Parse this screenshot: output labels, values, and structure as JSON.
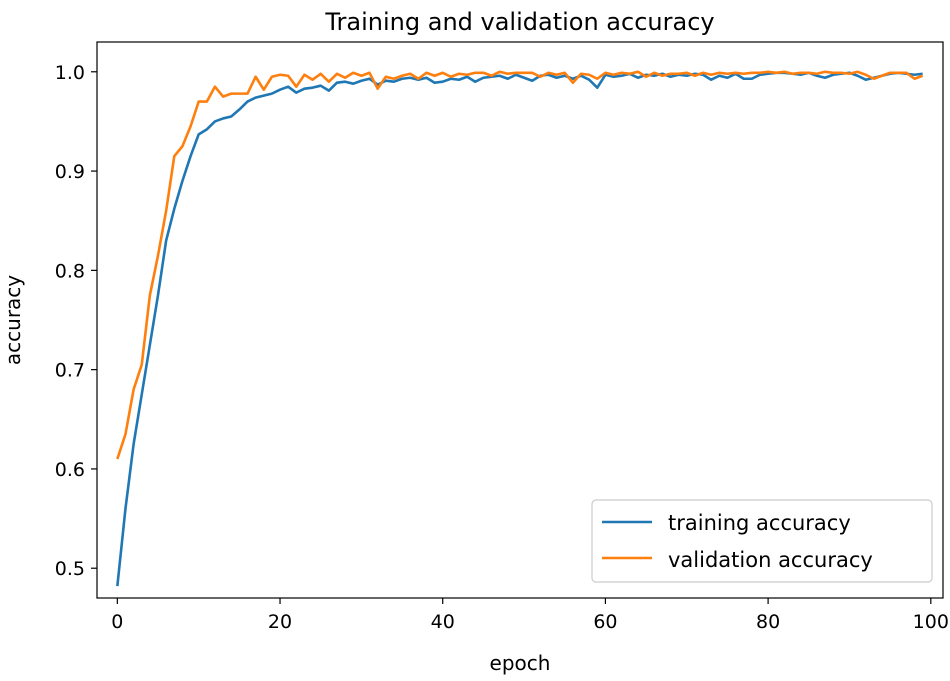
{
  "chart_data": {
    "type": "line",
    "title": "Training and validation accuracy",
    "xlabel": "epoch",
    "ylabel": "accuracy",
    "xlim": [
      -2.5,
      101.5
    ],
    "ylim": [
      0.47,
      1.03
    ],
    "xticks": [
      0,
      20,
      40,
      60,
      80,
      100
    ],
    "yticks": [
      0.5,
      0.6,
      0.7,
      0.8,
      0.9,
      1.0
    ],
    "xtick_labels": [
      "0",
      "20",
      "40",
      "60",
      "80",
      "100"
    ],
    "ytick_labels": [
      "0.5",
      "0.6",
      "0.7",
      "0.8",
      "0.9",
      "1.0"
    ],
    "grid": false,
    "legend_position": "bottom-right",
    "x": [
      0,
      1,
      2,
      3,
      4,
      5,
      6,
      7,
      8,
      9,
      10,
      11,
      12,
      13,
      14,
      15,
      16,
      17,
      18,
      19,
      20,
      21,
      22,
      23,
      24,
      25,
      26,
      27,
      28,
      29,
      30,
      31,
      32,
      33,
      34,
      35,
      36,
      37,
      38,
      39,
      40,
      41,
      42,
      43,
      44,
      45,
      46,
      47,
      48,
      49,
      50,
      51,
      52,
      53,
      54,
      55,
      56,
      57,
      58,
      59,
      60,
      61,
      62,
      63,
      64,
      65,
      66,
      67,
      68,
      69,
      70,
      71,
      72,
      73,
      74,
      75,
      76,
      77,
      78,
      79,
      80,
      81,
      82,
      83,
      84,
      85,
      86,
      87,
      88,
      89,
      90,
      91,
      92,
      93,
      94,
      95,
      96,
      97,
      98,
      99
    ],
    "series": [
      {
        "name": "training accuracy",
        "color": "#1f77b4",
        "values": [
          0.482,
          0.56,
          0.625,
          0.675,
          0.725,
          0.775,
          0.83,
          0.862,
          0.89,
          0.915,
          0.937,
          0.942,
          0.95,
          0.953,
          0.955,
          0.962,
          0.97,
          0.974,
          0.976,
          0.978,
          0.982,
          0.985,
          0.979,
          0.983,
          0.984,
          0.986,
          0.981,
          0.989,
          0.99,
          0.988,
          0.991,
          0.993,
          0.987,
          0.991,
          0.99,
          0.993,
          0.994,
          0.992,
          0.994,
          0.989,
          0.99,
          0.993,
          0.992,
          0.995,
          0.99,
          0.994,
          0.995,
          0.996,
          0.993,
          0.997,
          0.994,
          0.991,
          0.996,
          0.997,
          0.994,
          0.996,
          0.993,
          0.996,
          0.992,
          0.984,
          0.997,
          0.995,
          0.996,
          0.998,
          0.994,
          0.997,
          0.996,
          0.998,
          0.995,
          0.997,
          0.996,
          0.998,
          0.997,
          0.992,
          0.996,
          0.994,
          0.998,
          0.993,
          0.993,
          0.997,
          0.998,
          0.999,
          0.999,
          0.998,
          0.997,
          0.999,
          0.996,
          0.994,
          0.997,
          0.998,
          0.999,
          0.996,
          0.992,
          0.994,
          0.996,
          0.998,
          0.999,
          0.998,
          0.997,
          0.998
        ]
      },
      {
        "name": "validation accuracy",
        "color": "#ff7f0e",
        "values": [
          0.61,
          0.635,
          0.68,
          0.705,
          0.775,
          0.815,
          0.86,
          0.915,
          0.925,
          0.945,
          0.97,
          0.97,
          0.985,
          0.975,
          0.978,
          0.978,
          0.978,
          0.995,
          0.982,
          0.995,
          0.997,
          0.996,
          0.985,
          0.997,
          0.992,
          0.998,
          0.99,
          0.998,
          0.994,
          0.999,
          0.996,
          0.999,
          0.983,
          0.995,
          0.993,
          0.996,
          0.998,
          0.993,
          0.999,
          0.996,
          0.999,
          0.995,
          0.998,
          0.997,
          0.999,
          0.999,
          0.996,
          1.0,
          0.998,
          0.999,
          0.999,
          0.999,
          0.995,
          0.999,
          0.997,
          0.999,
          0.989,
          0.998,
          0.997,
          0.993,
          0.999,
          0.997,
          0.999,
          0.998,
          1.0,
          0.995,
          0.999,
          0.996,
          0.998,
          0.998,
          0.999,
          0.996,
          0.999,
          0.997,
          0.999,
          0.998,
          0.999,
          0.998,
          0.999,
          0.999,
          1.0,
          0.999,
          1.0,
          0.998,
          0.999,
          0.999,
          0.998,
          1.0,
          0.999,
          0.999,
          0.998,
          1.0,
          0.997,
          0.993,
          0.996,
          0.999,
          0.999,
          0.999,
          0.993,
          0.996
        ]
      }
    ]
  }
}
